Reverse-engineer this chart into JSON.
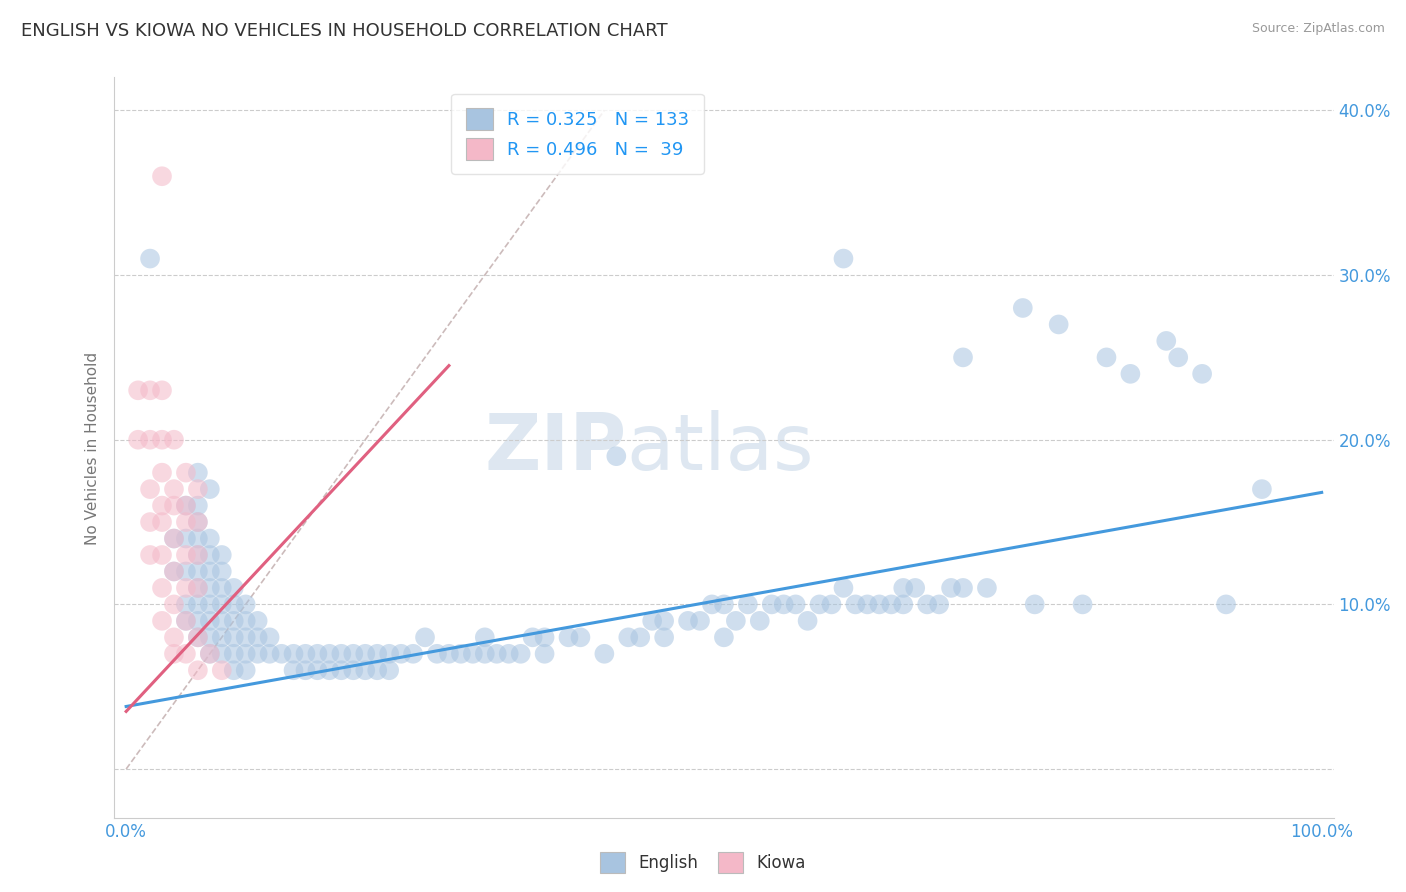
{
  "title": "ENGLISH VS KIOWA NO VEHICLES IN HOUSEHOLD CORRELATION CHART",
  "source_text": "Source: ZipAtlas.com",
  "ylabel": "No Vehicles in Household",
  "xlim": [
    -0.01,
    1.01
  ],
  "ylim": [
    -0.03,
    0.42
  ],
  "xticks": [
    0.0,
    1.0
  ],
  "yticks": [
    0.0,
    0.1,
    0.2,
    0.3,
    0.4
  ],
  "ytick_labels": [
    "",
    "10.0%",
    "20.0%",
    "30.0%",
    "40.0%"
  ],
  "xtick_labels": [
    "0.0%",
    "100.0%"
  ],
  "english_color": "#a8c4e0",
  "kiowa_color": "#f4b8c8",
  "english_R": 0.325,
  "english_N": 133,
  "kiowa_R": 0.496,
  "kiowa_N": 39,
  "legend_color": "#2196f3",
  "watermark_zip": "ZIP",
  "watermark_atlas": "atlas",
  "english_scatter": [
    [
      0.02,
      0.31
    ],
    [
      0.04,
      0.14
    ],
    [
      0.04,
      0.12
    ],
    [
      0.05,
      0.16
    ],
    [
      0.05,
      0.14
    ],
    [
      0.05,
      0.12
    ],
    [
      0.05,
      0.1
    ],
    [
      0.05,
      0.09
    ],
    [
      0.06,
      0.18
    ],
    [
      0.06,
      0.16
    ],
    [
      0.06,
      0.15
    ],
    [
      0.06,
      0.14
    ],
    [
      0.06,
      0.13
    ],
    [
      0.06,
      0.12
    ],
    [
      0.06,
      0.11
    ],
    [
      0.06,
      0.1
    ],
    [
      0.06,
      0.09
    ],
    [
      0.06,
      0.08
    ],
    [
      0.07,
      0.17
    ],
    [
      0.07,
      0.14
    ],
    [
      0.07,
      0.13
    ],
    [
      0.07,
      0.12
    ],
    [
      0.07,
      0.11
    ],
    [
      0.07,
      0.1
    ],
    [
      0.07,
      0.09
    ],
    [
      0.07,
      0.08
    ],
    [
      0.07,
      0.07
    ],
    [
      0.08,
      0.13
    ],
    [
      0.08,
      0.12
    ],
    [
      0.08,
      0.11
    ],
    [
      0.08,
      0.1
    ],
    [
      0.08,
      0.09
    ],
    [
      0.08,
      0.08
    ],
    [
      0.08,
      0.07
    ],
    [
      0.09,
      0.11
    ],
    [
      0.09,
      0.1
    ],
    [
      0.09,
      0.09
    ],
    [
      0.09,
      0.08
    ],
    [
      0.09,
      0.07
    ],
    [
      0.09,
      0.06
    ],
    [
      0.1,
      0.1
    ],
    [
      0.1,
      0.09
    ],
    [
      0.1,
      0.08
    ],
    [
      0.1,
      0.07
    ],
    [
      0.1,
      0.06
    ],
    [
      0.11,
      0.09
    ],
    [
      0.11,
      0.08
    ],
    [
      0.11,
      0.07
    ],
    [
      0.12,
      0.08
    ],
    [
      0.12,
      0.07
    ],
    [
      0.13,
      0.07
    ],
    [
      0.14,
      0.07
    ],
    [
      0.14,
      0.06
    ],
    [
      0.15,
      0.07
    ],
    [
      0.15,
      0.06
    ],
    [
      0.16,
      0.07
    ],
    [
      0.16,
      0.06
    ],
    [
      0.17,
      0.07
    ],
    [
      0.17,
      0.06
    ],
    [
      0.18,
      0.07
    ],
    [
      0.18,
      0.06
    ],
    [
      0.19,
      0.07
    ],
    [
      0.19,
      0.06
    ],
    [
      0.2,
      0.07
    ],
    [
      0.2,
      0.06
    ],
    [
      0.21,
      0.07
    ],
    [
      0.21,
      0.06
    ],
    [
      0.22,
      0.07
    ],
    [
      0.22,
      0.06
    ],
    [
      0.23,
      0.07
    ],
    [
      0.24,
      0.07
    ],
    [
      0.25,
      0.08
    ],
    [
      0.26,
      0.07
    ],
    [
      0.27,
      0.07
    ],
    [
      0.28,
      0.07
    ],
    [
      0.29,
      0.07
    ],
    [
      0.3,
      0.08
    ],
    [
      0.3,
      0.07
    ],
    [
      0.31,
      0.07
    ],
    [
      0.32,
      0.07
    ],
    [
      0.33,
      0.07
    ],
    [
      0.34,
      0.08
    ],
    [
      0.35,
      0.08
    ],
    [
      0.35,
      0.07
    ],
    [
      0.37,
      0.08
    ],
    [
      0.38,
      0.08
    ],
    [
      0.4,
      0.07
    ],
    [
      0.41,
      0.19
    ],
    [
      0.42,
      0.08
    ],
    [
      0.43,
      0.08
    ],
    [
      0.44,
      0.09
    ],
    [
      0.45,
      0.09
    ],
    [
      0.45,
      0.08
    ],
    [
      0.47,
      0.09
    ],
    [
      0.48,
      0.09
    ],
    [
      0.49,
      0.1
    ],
    [
      0.5,
      0.08
    ],
    [
      0.5,
      0.1
    ],
    [
      0.51,
      0.09
    ],
    [
      0.52,
      0.1
    ],
    [
      0.53,
      0.09
    ],
    [
      0.54,
      0.1
    ],
    [
      0.55,
      0.1
    ],
    [
      0.56,
      0.1
    ],
    [
      0.57,
      0.09
    ],
    [
      0.58,
      0.1
    ],
    [
      0.59,
      0.1
    ],
    [
      0.6,
      0.31
    ],
    [
      0.6,
      0.11
    ],
    [
      0.61,
      0.1
    ],
    [
      0.62,
      0.1
    ],
    [
      0.63,
      0.1
    ],
    [
      0.64,
      0.1
    ],
    [
      0.65,
      0.11
    ],
    [
      0.65,
      0.1
    ],
    [
      0.66,
      0.11
    ],
    [
      0.67,
      0.1
    ],
    [
      0.68,
      0.1
    ],
    [
      0.69,
      0.11
    ],
    [
      0.7,
      0.25
    ],
    [
      0.7,
      0.11
    ],
    [
      0.72,
      0.11
    ],
    [
      0.75,
      0.28
    ],
    [
      0.76,
      0.1
    ],
    [
      0.78,
      0.27
    ],
    [
      0.8,
      0.1
    ],
    [
      0.82,
      0.25
    ],
    [
      0.84,
      0.24
    ],
    [
      0.87,
      0.26
    ],
    [
      0.88,
      0.25
    ],
    [
      0.9,
      0.24
    ],
    [
      0.92,
      0.1
    ],
    [
      0.95,
      0.17
    ]
  ],
  "kiowa_scatter": [
    [
      0.01,
      0.23
    ],
    [
      0.01,
      0.2
    ],
    [
      0.02,
      0.23
    ],
    [
      0.02,
      0.2
    ],
    [
      0.02,
      0.17
    ],
    [
      0.02,
      0.15
    ],
    [
      0.02,
      0.13
    ],
    [
      0.03,
      0.36
    ],
    [
      0.03,
      0.23
    ],
    [
      0.03,
      0.2
    ],
    [
      0.03,
      0.18
    ],
    [
      0.03,
      0.16
    ],
    [
      0.03,
      0.15
    ],
    [
      0.03,
      0.13
    ],
    [
      0.03,
      0.11
    ],
    [
      0.03,
      0.09
    ],
    [
      0.04,
      0.2
    ],
    [
      0.04,
      0.17
    ],
    [
      0.04,
      0.16
    ],
    [
      0.04,
      0.14
    ],
    [
      0.04,
      0.12
    ],
    [
      0.04,
      0.1
    ],
    [
      0.04,
      0.08
    ],
    [
      0.04,
      0.07
    ],
    [
      0.05,
      0.18
    ],
    [
      0.05,
      0.16
    ],
    [
      0.05,
      0.15
    ],
    [
      0.05,
      0.13
    ],
    [
      0.05,
      0.11
    ],
    [
      0.05,
      0.09
    ],
    [
      0.05,
      0.07
    ],
    [
      0.06,
      0.17
    ],
    [
      0.06,
      0.15
    ],
    [
      0.06,
      0.13
    ],
    [
      0.06,
      0.11
    ],
    [
      0.06,
      0.08
    ],
    [
      0.06,
      0.06
    ],
    [
      0.07,
      0.07
    ],
    [
      0.08,
      0.06
    ]
  ],
  "english_trendline": [
    [
      0.0,
      0.038
    ],
    [
      1.0,
      0.168
    ]
  ],
  "kiowa_trendline": [
    [
      0.0,
      0.035
    ],
    [
      0.27,
      0.245
    ]
  ],
  "diagonal_line": [
    [
      0.0,
      0.0
    ],
    [
      0.4,
      0.4
    ]
  ],
  "bg_color": "#ffffff",
  "plot_bg_color": "#ffffff",
  "grid_color": "#cccccc",
  "title_color": "#333333",
  "title_fontsize": 13,
  "axis_label_color": "#777777",
  "tick_color": "#4499dd",
  "scatter_alpha": 0.55,
  "scatter_size": 200
}
